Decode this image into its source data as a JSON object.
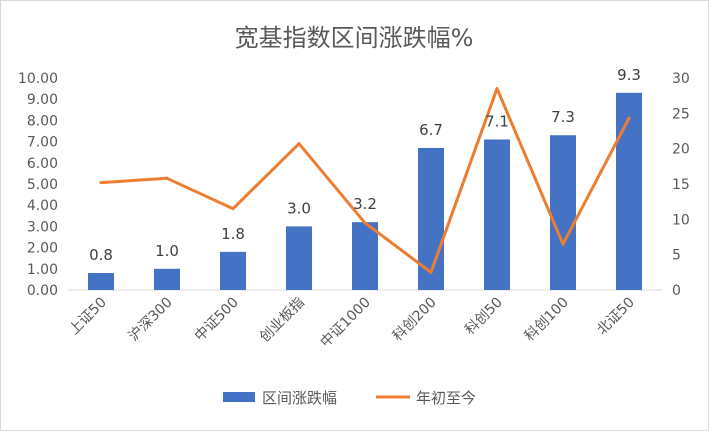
{
  "chart_data": {
    "type": "bar",
    "title": "宽基指数区间涨跌幅%",
    "categories": [
      "上证50",
      "沪深300",
      "中证500",
      "创业板指",
      "中证1000",
      "科创200",
      "科创50",
      "科创100",
      "北证50"
    ],
    "series": [
      {
        "name": "区间涨跌幅",
        "type": "bar",
        "axis": "left",
        "color": "#4472C4",
        "values": [
          0.8,
          1.0,
          1.8,
          3.0,
          3.2,
          6.7,
          7.1,
          7.3,
          9.3
        ],
        "labels": [
          "0.8",
          "1.0",
          "1.8",
          "3.0",
          "3.2",
          "6.7",
          "7.1",
          "7.3",
          "9.3"
        ]
      },
      {
        "name": "年初至今",
        "type": "line",
        "axis": "right",
        "color": "#ED7D31",
        "values": [
          15.2,
          15.8,
          11.5,
          20.7,
          9.5,
          2.5,
          28.5,
          6.5,
          24.3
        ]
      }
    ],
    "y_left": {
      "range": [
        0,
        10
      ],
      "ticks": [
        "0.00",
        "1.00",
        "2.00",
        "3.00",
        "4.00",
        "5.00",
        "6.00",
        "7.00",
        "8.00",
        "9.00",
        "10.00"
      ]
    },
    "y_right": {
      "range": [
        0,
        30
      ],
      "ticks": [
        "0",
        "5",
        "10",
        "15",
        "20",
        "25",
        "30"
      ]
    },
    "grid": false,
    "legend_position": "bottom"
  }
}
